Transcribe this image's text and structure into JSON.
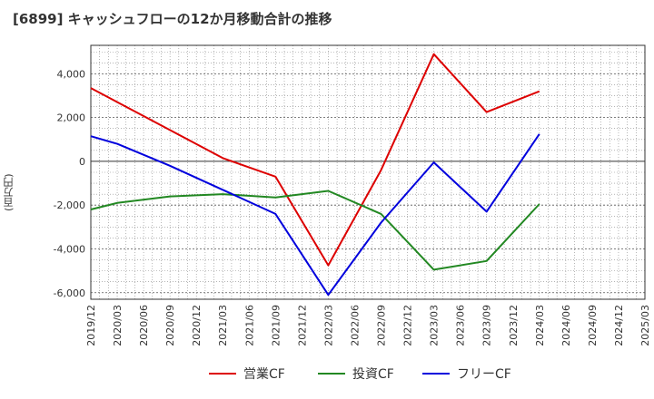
{
  "title": "[6899]  キャッシュフローの12か月移動合計の推移",
  "chart_data": {
    "type": "line",
    "title": "[6899]  キャッシュフローの12か月移動合計の推移",
    "ylabel": "(百万円)",
    "xlabel": "",
    "ylim": [
      -6300,
      5300
    ],
    "yticks": [
      4000,
      2000,
      0,
      -2000,
      -4000,
      -6000
    ],
    "ytick_labels": [
      "4,000",
      "2,000",
      "0",
      "-2,000",
      "-4,000",
      "-6,000"
    ],
    "categories": [
      "2019/12",
      "2020/03",
      "2020/06",
      "2020/09",
      "2020/12",
      "2021/03",
      "2021/06",
      "2021/09",
      "2021/12",
      "2022/03",
      "2022/06",
      "2022/09",
      "2022/12",
      "2023/03",
      "2023/06",
      "2023/09",
      "2023/12",
      "2024/03",
      "2024/06",
      "2024/09",
      "2024/12",
      "2025/03"
    ],
    "series": [
      {
        "name": "営業CF",
        "color": "#dd0000",
        "points": [
          [
            "2019/12",
            3350
          ],
          [
            "2021/03",
            150
          ],
          [
            "2021/09",
            -700
          ],
          [
            "2022/03",
            -4750
          ],
          [
            "2022/09",
            -400
          ],
          [
            "2023/03",
            4900
          ],
          [
            "2023/09",
            2250
          ],
          [
            "2024/03",
            3200
          ]
        ]
      },
      {
        "name": "投資CF",
        "color": "#228822",
        "points": [
          [
            "2019/12",
            -2200
          ],
          [
            "2020/03",
            -1900
          ],
          [
            "2020/09",
            -1600
          ],
          [
            "2021/03",
            -1500
          ],
          [
            "2021/09",
            -1650
          ],
          [
            "2022/03",
            -1350
          ],
          [
            "2022/09",
            -2400
          ],
          [
            "2023/03",
            -4950
          ],
          [
            "2023/09",
            -4550
          ],
          [
            "2024/03",
            -1950
          ]
        ]
      },
      {
        "name": "フリーCF",
        "color": "#0000dd",
        "points": [
          [
            "2019/12",
            1150
          ],
          [
            "2020/03",
            800
          ],
          [
            "2020/09",
            -200
          ],
          [
            "2021/03",
            -1300
          ],
          [
            "2021/09",
            -2400
          ],
          [
            "2022/03",
            -6100
          ],
          [
            "2022/09",
            -2800
          ],
          [
            "2023/03",
            -50
          ],
          [
            "2023/09",
            -2300
          ],
          [
            "2024/03",
            1250
          ]
        ]
      }
    ],
    "legend_position": "bottom",
    "grid": true
  }
}
